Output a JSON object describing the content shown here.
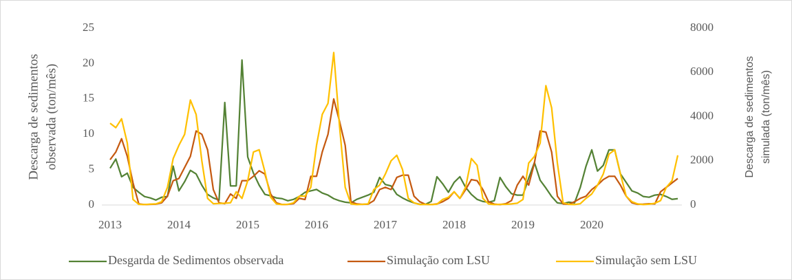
{
  "chart_data": {
    "type": "line",
    "y_title": [
      "Descarga de sedimentos",
      "observada (ton/mês)"
    ],
    "y2_title": [
      "Descarga de sedimentos",
      "simulada (ton/mês)"
    ],
    "categories": [
      "2013",
      null,
      null,
      null,
      null,
      null,
      null,
      null,
      null,
      null,
      null,
      null,
      "2014",
      null,
      null,
      null,
      null,
      null,
      null,
      null,
      null,
      null,
      null,
      null,
      "2015",
      null,
      null,
      null,
      null,
      null,
      null,
      null,
      null,
      null,
      null,
      null,
      "2016",
      null,
      null,
      null,
      null,
      null,
      null,
      null,
      null,
      null,
      null,
      null,
      "2017",
      null,
      null,
      null,
      null,
      null,
      null,
      null,
      null,
      null,
      null,
      null,
      "2018",
      null,
      null,
      null,
      null,
      null,
      null,
      null,
      null,
      null,
      null,
      null,
      "2019",
      null,
      null,
      null,
      null,
      null,
      null,
      null,
      null,
      null,
      null,
      null,
      "2020",
      null,
      null,
      null,
      null,
      null,
      null,
      null,
      null,
      null,
      null,
      null,
      null,
      null,
      null,
      null
    ],
    "ylim": [
      0,
      25
    ],
    "yticks": [
      0,
      5,
      10,
      15,
      20,
      25
    ],
    "y2lim": [
      0,
      8000
    ],
    "y2ticks": [
      0,
      2000,
      4000,
      6000,
      8000
    ],
    "legend": "bottom",
    "series": [
      {
        "name": "Desgarda de Sedimentos observada",
        "color": "#548235",
        "values": [
          5.2,
          6.5,
          4.0,
          4.5,
          2.5,
          1.8,
          1.2,
          1.0,
          0.7,
          1.1,
          1.2,
          5.5,
          2.0,
          3.3,
          4.9,
          4.4,
          2.8,
          1.5,
          1.0,
          0.7,
          14.5,
          2.7,
          2.7,
          20.5,
          6.8,
          4.5,
          2.8,
          1.5,
          1.3,
          1.0,
          0.9,
          0.6,
          0.8,
          1.2,
          1.8,
          2.0,
          2.2,
          1.7,
          1.4,
          0.9,
          0.6,
          0.4,
          0.3,
          0.8,
          1.1,
          1.4,
          1.8,
          3.9,
          2.9,
          2.7,
          1.5,
          1.0,
          0.6,
          0.3,
          0.1,
          0.1,
          0.5,
          4.0,
          3.0,
          1.8,
          3.2,
          4.0,
          2.5,
          1.5,
          0.8,
          0.5,
          0.4,
          0.6,
          3.9,
          2.6,
          1.6,
          1.4,
          1.4,
          3.8,
          6.0,
          3.5,
          2.4,
          1.2,
          0.3,
          0.2,
          0.4,
          0.3,
          2.5,
          5.5,
          7.8,
          4.8,
          5.6,
          7.8,
          7.8,
          4.4,
          3.2,
          2.0,
          1.7,
          1.2,
          1.1,
          1.4,
          1.5,
          1.2,
          0.8,
          0.9
        ]
      },
      {
        "name": "Simulação com LSU",
        "color": "#c55a11",
        "axis": "y2",
        "values": [
          2050,
          2400,
          3000,
          2200,
          1000,
          50,
          20,
          30,
          40,
          100,
          400,
          1100,
          1200,
          1700,
          2200,
          3350,
          3200,
          2500,
          700,
          100,
          60,
          500,
          300,
          1100,
          1100,
          1300,
          1550,
          1400,
          500,
          100,
          20,
          30,
          60,
          300,
          250,
          1300,
          1300,
          2400,
          3200,
          4800,
          3800,
          2700,
          150,
          50,
          30,
          40,
          200,
          700,
          800,
          700,
          1250,
          1350,
          1350,
          400,
          150,
          30,
          20,
          50,
          150,
          300,
          600,
          300,
          700,
          1150,
          1100,
          700,
          150,
          40,
          20,
          60,
          200,
          900,
          1300,
          900,
          1900,
          3350,
          3300,
          2400,
          400,
          50,
          30,
          150,
          300,
          400,
          700,
          900,
          1150,
          1300,
          1300,
          900,
          400,
          100,
          30,
          40,
          60,
          50,
          600,
          800,
          1000,
          1200
        ]
      },
      {
        "name": "Simulação sem LSU",
        "color": "#ffc000",
        "axis": "y2",
        "values": [
          3700,
          3500,
          3900,
          2800,
          250,
          30,
          20,
          40,
          50,
          150,
          800,
          2100,
          2700,
          3200,
          4750,
          4100,
          2000,
          300,
          60,
          70,
          80,
          100,
          600,
          300,
          1100,
          2400,
          2500,
          1500,
          350,
          50,
          20,
          30,
          100,
          400,
          400,
          800,
          2700,
          4100,
          4600,
          6900,
          3600,
          800,
          50,
          20,
          30,
          50,
          700,
          900,
          1400,
          2000,
          2250,
          1600,
          300,
          100,
          20,
          30,
          20,
          40,
          250,
          350,
          600,
          300,
          800,
          2100,
          1800,
          300,
          50,
          20,
          30,
          30,
          50,
          80,
          250,
          1900,
          2200,
          2800,
          5400,
          4400,
          1900,
          100,
          30,
          20,
          60,
          300,
          500,
          900,
          1400,
          2300,
          2500,
          1400,
          400,
          150,
          50,
          20,
          40,
          80,
          200,
          800,
          1100,
          2250
        ]
      }
    ]
  }
}
